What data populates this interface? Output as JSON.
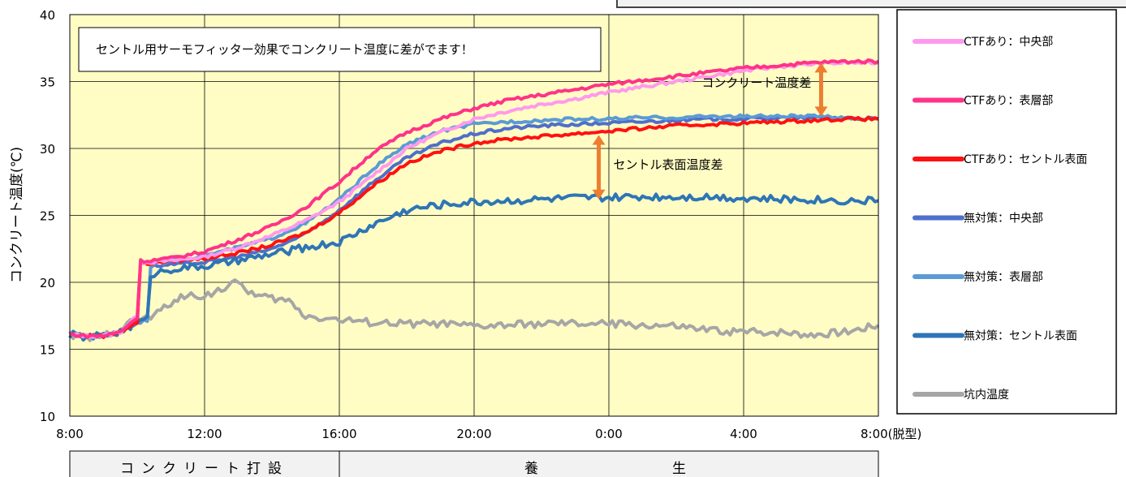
{
  "chart_data": {
    "type": "line",
    "ylabel": "コンクリート温度(℃)",
    "xlabel": "",
    "ylim": [
      10,
      40
    ],
    "yticks": [
      10,
      15,
      20,
      25,
      30,
      35,
      40
    ],
    "x_domain_hours": [
      0,
      24
    ],
    "xticks": [
      "8:00",
      "12:00",
      "16:00",
      "20:00",
      "0:00",
      "4:00",
      "8:00(脱型)"
    ],
    "grid": true,
    "background": "#fffdc4",
    "legend_position": "right",
    "annotation_box": "セントル用サーモフィッター効果でコンクリート温度に差がでます！",
    "annotations": [
      {
        "text": "コンクリート温度差",
        "x_hours": 22.3,
        "y_from": 32.4,
        "y_to": 36.4
      },
      {
        "text": "セントル表面温度差",
        "x_hours": 15.7,
        "y_from": 26.2,
        "y_to": 31.0
      }
    ],
    "phases": [
      {
        "label": "コンクリート打設",
        "from_hours": 0,
        "to_hours": 8
      },
      {
        "label": "養　　　　　　生",
        "from_hours": 8,
        "to_hours": 24
      }
    ],
    "series": [
      {
        "name": "CTFあり：中央部",
        "color": "#ff99ee",
        "x": [
          0,
          0.5,
          1,
          1.5,
          2,
          2.1,
          2.3,
          3,
          4,
          5,
          6,
          7,
          8,
          9,
          10,
          11,
          12,
          13,
          14,
          15,
          16,
          17,
          18,
          19,
          20,
          21,
          22,
          23,
          24
        ],
        "y": [
          16.1,
          16,
          16,
          16.3,
          17.5,
          21.5,
          21.5,
          21.6,
          21.9,
          22.6,
          23.5,
          24.6,
          26,
          28,
          30,
          31.2,
          32.2,
          32.8,
          33.3,
          33.7,
          34.2,
          34.6,
          35,
          35.4,
          35.8,
          36.1,
          36.3,
          36.4,
          36.4
        ]
      },
      {
        "name": "CTFあり：表層部",
        "color": "#ff3388",
        "x": [
          0,
          0.5,
          1,
          1.5,
          2,
          2.1,
          2.3,
          3,
          4,
          5,
          6,
          7,
          8,
          9,
          10,
          11,
          12,
          13,
          14,
          15,
          16,
          17,
          18,
          19,
          20,
          21,
          22,
          23,
          24
        ],
        "y": [
          16.1,
          16,
          16,
          16.3,
          17.4,
          21.6,
          21.6,
          21.8,
          22.3,
          23.2,
          24.2,
          25.6,
          27.5,
          29.7,
          31.2,
          32.2,
          33,
          33.6,
          34,
          34.4,
          34.8,
          35.1,
          35.4,
          35.7,
          36,
          36.2,
          36.4,
          36.5,
          36.5
        ]
      },
      {
        "name": "CTFあり：セントル表面",
        "color": "#ff1111",
        "x": [
          0,
          0.5,
          1,
          1.5,
          2,
          2.1,
          2.3,
          3,
          4,
          5,
          6,
          7,
          8,
          9,
          10,
          11,
          12,
          13,
          14,
          15,
          16,
          17,
          18,
          19,
          20,
          21,
          22,
          23,
          24
        ],
        "y": [
          16.1,
          16,
          16,
          16.3,
          17,
          21.4,
          21.4,
          21.6,
          21.8,
          22.2,
          22.8,
          23.7,
          25.2,
          27.2,
          28.9,
          29.8,
          30.4,
          30.7,
          30.9,
          31.1,
          31.3,
          31.5,
          31.7,
          31.8,
          31.9,
          32,
          32.1,
          32.2,
          32.2
        ]
      },
      {
        "name": "無対策：中央部",
        "color": "#4f6fcc",
        "x": [
          0,
          0.5,
          1,
          1.5,
          2,
          2.3,
          2.4,
          3,
          4,
          5,
          6,
          7,
          8,
          9,
          10,
          11,
          12,
          13,
          14,
          15,
          16,
          17,
          18,
          19,
          20,
          21,
          22,
          23,
          24
        ],
        "y": [
          16.1,
          16,
          16,
          16.3,
          17,
          17.2,
          21.2,
          21.3,
          21.5,
          21.9,
          22.5,
          23.6,
          25.4,
          27.5,
          29.3,
          30.4,
          31.1,
          31.5,
          31.7,
          31.8,
          31.9,
          32,
          32.1,
          32.2,
          32.2,
          32.3,
          32.3,
          32.3,
          32.2
        ]
      },
      {
        "name": "無対策：表層部",
        "color": "#5b9bd5",
        "x": [
          0,
          0.5,
          1,
          1.5,
          2,
          2.3,
          2.4,
          3,
          4,
          5,
          6,
          7,
          8,
          9,
          10,
          11,
          12,
          13,
          14,
          15,
          16,
          17,
          18,
          19,
          20,
          21,
          22,
          23,
          24
        ],
        "y": [
          16.1,
          16,
          16,
          16.3,
          17,
          17.2,
          21.3,
          21.6,
          22,
          22.6,
          23.3,
          24.4,
          26.2,
          28.5,
          30.3,
          31.3,
          31.8,
          32,
          32.1,
          32.2,
          32.2,
          32.3,
          32.3,
          32.4,
          32.4,
          32.4,
          32.4,
          32.3,
          32.2
        ]
      },
      {
        "name": "無対策：セントル表面",
        "color": "#2e75b6",
        "x": [
          0,
          0.5,
          1,
          1.5,
          2,
          2.3,
          2.4,
          3,
          4,
          5,
          6,
          7,
          8,
          9,
          10,
          11,
          12,
          13,
          14,
          15,
          16,
          17,
          18,
          19,
          20,
          21,
          22,
          23,
          24
        ],
        "y": [
          16.1,
          15.9,
          16,
          16.3,
          17,
          17.2,
          20.6,
          21,
          21.2,
          21.6,
          22.1,
          22.6,
          23,
          24.3,
          25.4,
          25.8,
          26,
          26.1,
          26.2,
          26.3,
          26.3,
          26.4,
          26.4,
          26.4,
          26.3,
          26.2,
          26.2,
          26.1,
          26.1
        ]
      },
      {
        "name": "坑内温度",
        "color": "#a6a6a6",
        "x": [
          0,
          0.5,
          1,
          1.5,
          2,
          2.5,
          3,
          3.5,
          4,
          4.5,
          5,
          5.5,
          6,
          6.5,
          7,
          8,
          9,
          10,
          11,
          12,
          13,
          14,
          15,
          16,
          17,
          18,
          19,
          20,
          21,
          22,
          23,
          24
        ],
        "y": [
          16.1,
          15.8,
          16,
          16.6,
          17.2,
          17.5,
          18.5,
          19,
          19,
          19.5,
          20,
          19,
          18.8,
          18.6,
          17.5,
          17.2,
          17,
          16.9,
          16.9,
          16.7,
          16.8,
          16.9,
          16.9,
          16.9,
          16.8,
          16.7,
          16.4,
          16.3,
          16.3,
          16.1,
          16.3,
          16.8
        ]
      }
    ]
  }
}
